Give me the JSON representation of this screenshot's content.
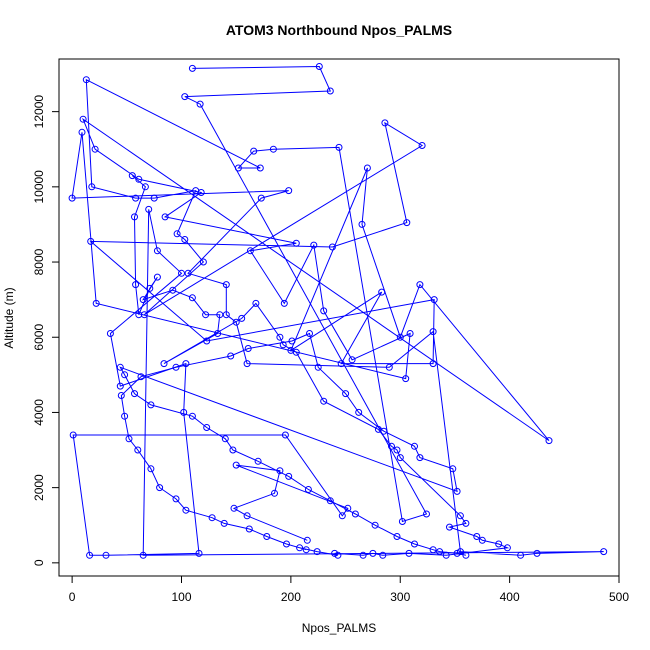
{
  "chart_data": {
    "type": "line",
    "title": "ATOM3 Northbound Npos_PALMS",
    "xlabel": "Npos_PALMS",
    "ylabel": "Altitude (m)",
    "xlim": [
      -12,
      500
    ],
    "ylim": [
      -350,
      13400
    ],
    "xticks": [
      0,
      100,
      200,
      300,
      400,
      500
    ],
    "yticks": [
      0,
      2000,
      4000,
      6000,
      8000,
      10000,
      12000
    ],
    "grid": false,
    "legend": "none",
    "series_color": "#0000FF",
    "series": [
      {
        "style": "line-with-open-circles",
        "x": [
          110,
          226,
          236,
          103,
          117,
          324,
          302,
          244,
          184,
          166,
          152,
          172,
          13,
          18,
          58,
          75,
          113,
          96,
          103,
          120,
          66,
          320,
          286,
          306,
          238,
          17,
          123,
          331,
          330,
          246,
          283,
          200,
          270,
          265,
          300,
          318,
          436,
          10,
          21,
          61,
          118,
          85,
          205,
          163,
          194,
          221,
          230,
          256,
          309,
          305,
          22,
          9,
          0,
          198,
          173,
          106,
          141,
          141,
          150,
          160,
          290,
          330,
          355,
          410,
          425,
          486,
          65,
          70,
          78,
          100,
          35,
          44,
          104,
          102,
          116,
          31,
          16,
          1,
          195,
          247,
          252,
          150,
          190,
          185,
          148,
          160,
          215
        ],
        "y": [
          13150,
          13200,
          12550,
          12400,
          12200,
          1300,
          1100,
          11050,
          11000,
          10950,
          10500,
          10500,
          12850,
          10000,
          9700,
          9700,
          9900,
          8750,
          8600,
          8000,
          6600,
          11100,
          11700,
          9050,
          8400,
          8550,
          5900,
          7000,
          5300,
          5300,
          7200,
          5650,
          10500,
          9000,
          6000,
          7400,
          3250,
          11800,
          11000,
          10200,
          9850,
          9200,
          8500,
          8300,
          6900,
          8450,
          6700,
          5400,
          6100,
          4900,
          6900,
          11450,
          9700,
          9900,
          9700,
          7700,
          7400,
          6600,
          6400,
          5300,
          5200,
          6150,
          300,
          200,
          250,
          300,
          200,
          9400,
          8300,
          7700,
          6100,
          4700,
          5300,
          4000,
          250,
          200,
          200,
          3400,
          3400,
          1250,
          1450,
          2600,
          2450,
          1850,
          1450,
          1250,
          600
        ]
      },
      {
        "style": "line-with-open-circles",
        "x": [
          55,
          67,
          57,
          58,
          61,
          71,
          78,
          65,
          92,
          110,
          122,
          135,
          133,
          84,
          155,
          168,
          190,
          193,
          205,
          230,
          280,
          292,
          297,
          300,
          355,
          360,
          345,
          370,
          375,
          390,
          398,
          342,
          308,
          284,
          275,
          266,
          240,
          243,
          224,
          208,
          214,
          196,
          178,
          162,
          139,
          128,
          104,
          95,
          80,
          72,
          60,
          52,
          48,
          45,
          63,
          95,
          145,
          161,
          201,
          217,
          225,
          250,
          262,
          285,
          313,
          318,
          348,
          352,
          44,
          48,
          57,
          72,
          110,
          123,
          140,
          147,
          170,
          198,
          216,
          236,
          259,
          277,
          297,
          313,
          330,
          336,
          352,
          360
        ],
        "y": [
          10300,
          10000,
          9200,
          7400,
          6600,
          7300,
          7600,
          7000,
          7250,
          7050,
          6600,
          6600,
          6100,
          5300,
          6500,
          6900,
          6000,
          5800,
          5600,
          4300,
          3550,
          3100,
          3000,
          2800,
          1250,
          1050,
          950,
          700,
          600,
          500,
          400,
          200,
          250,
          200,
          250,
          200,
          250,
          200,
          300,
          400,
          350,
          500,
          700,
          900,
          1050,
          1200,
          1400,
          1700,
          2000,
          2500,
          3000,
          3300,
          3900,
          4450,
          4950,
          5200,
          5500,
          5700,
          5900,
          6100,
          5200,
          4500,
          4000,
          3500,
          3100,
          2800,
          2500,
          1900,
          5200,
          5000,
          4500,
          4200,
          3900,
          3600,
          3300,
          3000,
          2700,
          2300,
          1950,
          1650,
          1300,
          1000,
          700,
          500,
          350,
          300,
          250,
          200
        ]
      }
    ]
  }
}
